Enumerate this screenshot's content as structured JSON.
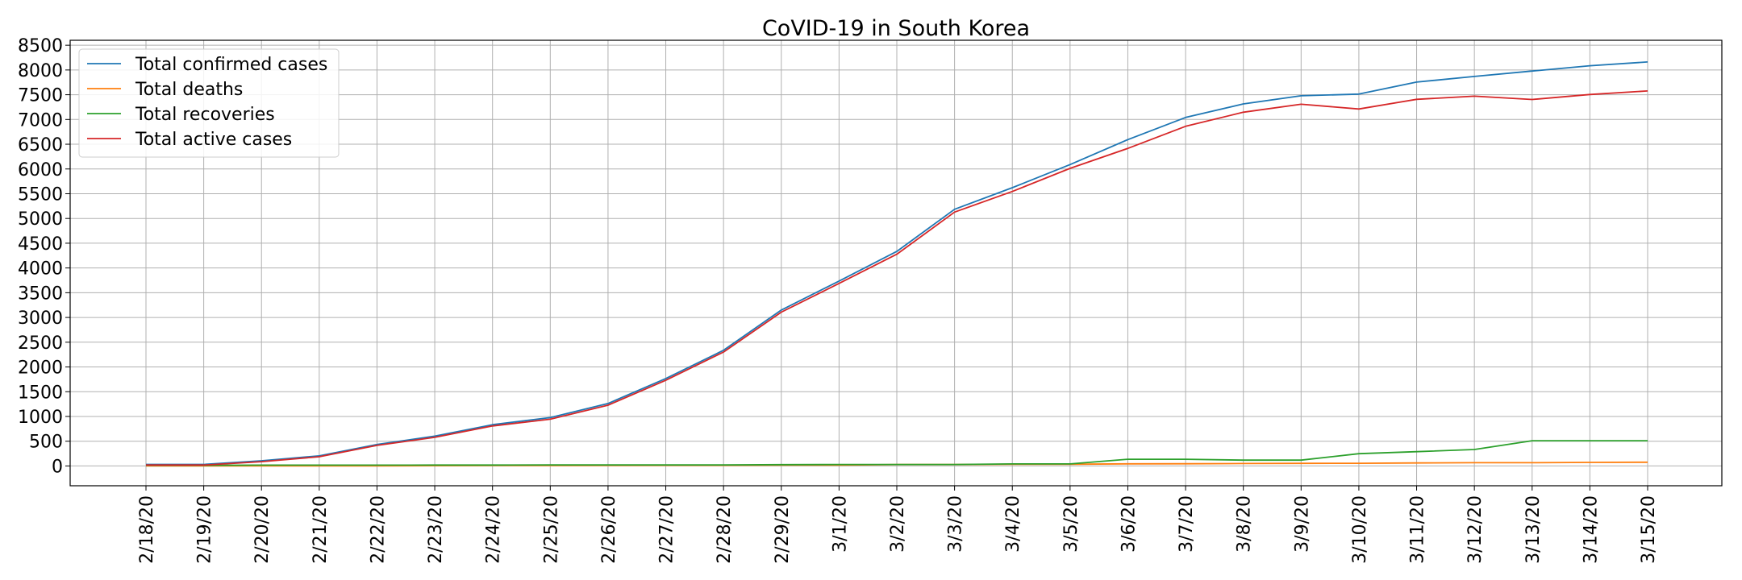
{
  "chart_data": {
    "type": "line",
    "title": "CoVID-19 in South Korea",
    "xlabel": "",
    "ylabel": "",
    "categories": [
      "2/18/20",
      "2/19/20",
      "2/20/20",
      "2/21/20",
      "2/22/20",
      "2/23/20",
      "2/24/20",
      "2/25/20",
      "2/26/20",
      "2/27/20",
      "2/28/20",
      "2/29/20",
      "3/1/20",
      "3/2/20",
      "3/3/20",
      "3/4/20",
      "3/5/20",
      "3/6/20",
      "3/7/20",
      "3/8/20",
      "3/9/20",
      "3/10/20",
      "3/11/20",
      "3/12/20",
      "3/13/20",
      "3/14/20",
      "3/15/20"
    ],
    "ylim": [
      -400,
      8600
    ],
    "yticks": [
      0,
      500,
      1000,
      1500,
      2000,
      2500,
      3000,
      3500,
      4000,
      4500,
      5000,
      5500,
      6000,
      6500,
      7000,
      7500,
      8000,
      8500
    ],
    "grid": true,
    "legend_position": "top-left",
    "series": [
      {
        "name": "Total confirmed cases",
        "color": "#1f77b4",
        "values": [
          31,
          31,
          104,
          204,
          433,
          602,
          833,
          977,
          1261,
          1766,
          2337,
          3150,
          3736,
          4335,
          5186,
          5621,
          6088,
          6593,
          7041,
          7314,
          7478,
          7513,
          7755,
          7869,
          7979,
          8086,
          8162
        ]
      },
      {
        "name": "Total deaths",
        "color": "#ff7f0e",
        "values": [
          0,
          0,
          1,
          2,
          2,
          6,
          8,
          10,
          12,
          13,
          13,
          16,
          17,
          28,
          28,
          35,
          35,
          42,
          44,
          50,
          53,
          54,
          60,
          66,
          66,
          72,
          75
        ]
      },
      {
        "name": "Total recoveries",
        "color": "#2ca02c",
        "values": [
          12,
          12,
          16,
          16,
          16,
          18,
          18,
          22,
          22,
          22,
          22,
          27,
          30,
          30,
          30,
          41,
          41,
          135,
          135,
          118,
          118,
          247,
          288,
          333,
          510,
          510,
          510
        ]
      },
      {
        "name": "Total active cases",
        "color": "#d62728",
        "values": [
          19,
          19,
          87,
          186,
          415,
          578,
          807,
          945,
          1227,
          1731,
          2302,
          3107,
          3689,
          4277,
          5128,
          5545,
          6012,
          6416,
          6862,
          7146,
          7307,
          7212,
          7407,
          7470,
          7403,
          7504,
          7577
        ]
      }
    ]
  }
}
